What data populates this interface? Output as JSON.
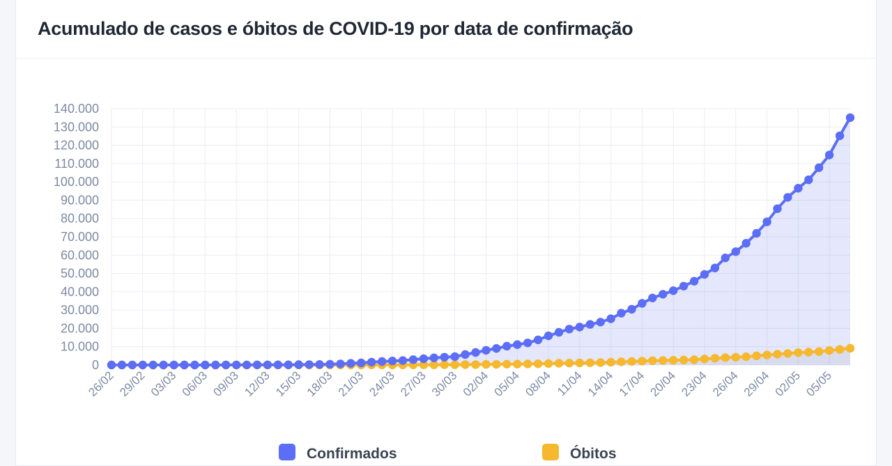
{
  "card": {
    "title": "Acumulado de casos e óbitos de COVID-19 por data de confirmação"
  },
  "chart_data": {
    "type": "line",
    "title": "Acumulado de casos e óbitos de COVID-19 por data de confirmação",
    "xlabel": "",
    "ylabel": "",
    "ylim": [
      0,
      140000
    ],
    "grid": true,
    "legend_placement": "bottom",
    "y_ticks": [
      "0",
      "10.000",
      "20.000",
      "30.000",
      "40.000",
      "50.000",
      "60.000",
      "70.000",
      "80.000",
      "90.000",
      "100.000",
      "110.000",
      "120.000",
      "130.000",
      "140.000"
    ],
    "x_tick_labels": [
      "26/02",
      "29/02",
      "03/03",
      "06/03",
      "09/03",
      "12/03",
      "15/03",
      "18/03",
      "21/03",
      "24/03",
      "27/03",
      "30/03",
      "02/04",
      "05/04",
      "08/04",
      "11/04",
      "14/04",
      "17/04",
      "20/04",
      "23/04",
      "26/04",
      "29/04",
      "02/05",
      "05/05"
    ],
    "x": [
      "26/02",
      "27/02",
      "28/02",
      "29/02",
      "01/03",
      "02/03",
      "03/03",
      "04/03",
      "05/03",
      "06/03",
      "07/03",
      "08/03",
      "09/03",
      "10/03",
      "11/03",
      "12/03",
      "13/03",
      "14/03",
      "15/03",
      "16/03",
      "17/03",
      "18/03",
      "19/03",
      "20/03",
      "21/03",
      "22/03",
      "23/03",
      "24/03",
      "25/03",
      "26/03",
      "27/03",
      "28/03",
      "29/03",
      "30/03",
      "31/03",
      "01/04",
      "02/04",
      "03/04",
      "04/04",
      "05/04",
      "06/04",
      "07/04",
      "08/04",
      "09/04",
      "10/04",
      "11/04",
      "12/04",
      "13/04",
      "14/04",
      "15/04",
      "16/04",
      "17/04",
      "18/04",
      "19/04",
      "20/04",
      "21/04",
      "22/04",
      "23/04",
      "24/04",
      "25/04",
      "26/04",
      "27/04",
      "28/04",
      "29/04",
      "30/04",
      "01/05",
      "02/05",
      "03/05",
      "04/05",
      "05/05",
      "06/05",
      "07/05"
    ],
    "series": [
      {
        "name": "Confirmados",
        "color": "#5b6ef5",
        "values": [
          1,
          1,
          1,
          2,
          2,
          2,
          2,
          3,
          7,
          13,
          19,
          25,
          30,
          34,
          69,
          77,
          98,
          121,
          200,
          234,
          291,
          428,
          621,
          904,
          1128,
          1546,
          1891,
          2201,
          2433,
          2915,
          3417,
          3904,
          4256,
          4579,
          5717,
          6836,
          8044,
          9056,
          10278,
          11130,
          12056,
          13717,
          15927,
          17857,
          19638,
          20727,
          22169,
          23430,
          25262,
          28320,
          30425,
          33682,
          36599,
          38654,
          40581,
          43079,
          45757,
          49492,
          52995,
          58509,
          61888,
          66501,
          71886,
          78162,
          85380,
          91589,
          96559,
          101147,
          107780,
          114715,
          125218,
          135106
        ]
      },
      {
        "name": "Óbitos",
        "color": "#f5b82e",
        "values": [
          0,
          0,
          0,
          0,
          0,
          0,
          0,
          0,
          0,
          0,
          0,
          0,
          0,
          0,
          0,
          0,
          0,
          0,
          0,
          0,
          1,
          4,
          7,
          11,
          18,
          25,
          34,
          46,
          57,
          77,
          92,
          111,
          136,
          159,
          201,
          240,
          324,
          359,
          445,
          486,
          553,
          667,
          800,
          941,
          1057,
          1124,
          1223,
          1328,
          1532,
          1736,
          1924,
          2141,
          2354,
          2462,
          2587,
          2741,
          2906,
          3313,
          3704,
          4045,
          4205,
          4543,
          5017,
          5466,
          5901,
          6329,
          6750,
          7025,
          7321,
          7921,
          8536,
          9146
        ]
      }
    ]
  }
}
